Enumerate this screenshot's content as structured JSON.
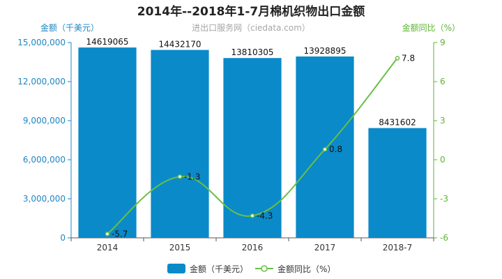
{
  "chart_data": {
    "type": "bar",
    "title": "2014年--2018年1-7月棉机织物出口金额",
    "subtitle": "进出口服务网（ciedata.com）",
    "categories": [
      "2014",
      "2015",
      "2016",
      "2017",
      "2018-7"
    ],
    "series": [
      {
        "name": "金额（千美元）",
        "type": "bar",
        "axis": "left",
        "values": [
          14619065,
          14432170,
          13810305,
          13928895,
          8431602
        ],
        "labels": [
          "14619065",
          "14432170",
          "13810305",
          "13928895",
          "8431602"
        ]
      },
      {
        "name": "金额同比（%）",
        "type": "line",
        "axis": "right",
        "values": [
          -5.7,
          -1.3,
          -4.3,
          0.8,
          7.8
        ],
        "labels": [
          "-5.7",
          "-1.3",
          "-4.3",
          "0.8",
          "7.8"
        ]
      }
    ],
    "y_left": {
      "label": "金额（千美元）",
      "range": [
        0,
        15000000
      ],
      "ticks": [
        0,
        3000000,
        6000000,
        9000000,
        12000000,
        15000000
      ],
      "tick_labels": [
        "0",
        "3,000,000",
        "6,000,000",
        "9,000,000",
        "12,000,000",
        "15,000,000"
      ]
    },
    "y_right": {
      "label": "金额同比（%）",
      "range": [
        -6,
        9
      ],
      "ticks": [
        -6,
        -3,
        0,
        3,
        6,
        9
      ],
      "tick_labels": [
        "-6",
        "-3",
        "0",
        "3",
        "6",
        "9"
      ]
    },
    "grid": false,
    "legend": "bottom",
    "colors": {
      "bar": "#0a8ac8",
      "line": "#6abf45",
      "left_axis": "#1d86c4",
      "right_axis": "#5cb531"
    }
  }
}
